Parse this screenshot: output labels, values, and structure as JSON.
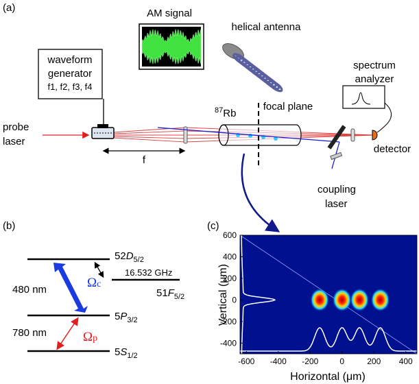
{
  "panel_a": {
    "label": "(a)",
    "am_signal": "AM signal",
    "helical_antenna": "helical antenna",
    "waveform_generator": {
      "title": "waveform generator",
      "frequencies": "f1, f2, f3, f4"
    },
    "spectrum_analyzer": [
      "spectrum",
      "analyzer"
    ],
    "probe_laser": [
      "probe",
      "laser"
    ],
    "focal_length": "f",
    "cell": {
      "isotope": "87",
      "element": "Rb"
    },
    "focal_plane": "focal plane",
    "coupling_laser": [
      "coupling",
      "laser"
    ],
    "detector": "detector"
  },
  "panel_b": {
    "label": "(b)",
    "states": [
      {
        "n": "52",
        "l": "D",
        "j": "5/2"
      },
      {
        "n": "51",
        "l": "F",
        "j": "5/2"
      },
      {
        "n": "5",
        "l": "P",
        "j": "3/2"
      },
      {
        "n": "5",
        "l": "S",
        "j": "1/2"
      }
    ],
    "splitting": "16.532 GHz",
    "coupling_wavelength": "480 nm",
    "probe_wavelength": "780 nm",
    "coupling_rabi": {
      "symbol": "Ω",
      "sub": "c"
    },
    "probe_rabi": {
      "symbol": "Ω",
      "sub": "p"
    }
  },
  "panel_c": {
    "label": "(c)",
    "xlabel": "Horizontal (μm)",
    "ylabel": "Vertical (μm)",
    "xlim": [
      -640,
      470
    ],
    "ylim": [
      -500,
      600
    ],
    "xticks": [
      -600,
      -400,
      -200,
      0,
      200,
      400
    ],
    "yticks": [
      600,
      400,
      200,
      0,
      -200,
      -400
    ]
  }
}
